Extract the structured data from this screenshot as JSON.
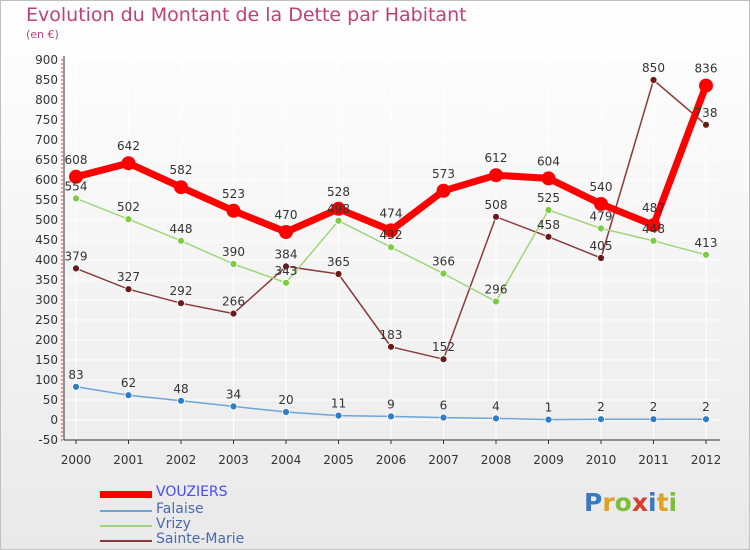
{
  "header": {
    "title": "Evolution du Montant de la Dette par Habitant",
    "subtitle": "(en €)"
  },
  "logo": {
    "text": "Proxiti",
    "letter_colors": [
      "#3a78c4",
      "#e0a020",
      "#7bbf3a",
      "#d93b2e",
      "#3a78c4",
      "#e0a020",
      "#7bbf3a"
    ]
  },
  "colors": {
    "title": "#c0407a",
    "axis": "#333333",
    "grid": "#ffffff",
    "tick_red": "#d93b2e"
  },
  "chart_data": {
    "type": "line",
    "x": [
      "2000",
      "2001",
      "2002",
      "2003",
      "2004",
      "2005",
      "2006",
      "2007",
      "2008",
      "2009",
      "2010",
      "2011",
      "2012"
    ],
    "ylim": [
      -50,
      900
    ],
    "yticks": [
      -50,
      0,
      50,
      100,
      150,
      200,
      250,
      300,
      350,
      400,
      450,
      500,
      550,
      600,
      650,
      700,
      750,
      800,
      850,
      900
    ],
    "title": "Evolution du Montant de la Dette par Habitant",
    "ylabel": "(en €)",
    "legend_position": "bottom-left",
    "series": [
      {
        "name": "VOUZIERS",
        "color": "#ff0000",
        "marker_color": "#ff0000",
        "width": 7,
        "label_color": "#333333",
        "values": [
          608,
          642,
          582,
          523,
          470,
          528,
          474,
          573,
          612,
          604,
          540,
          487,
          836
        ]
      },
      {
        "name": "Falaise",
        "color": "#6fa4d8",
        "marker_color": "#2f7dc8",
        "width": 1.5,
        "label_color": "#333333",
        "values": [
          83,
          62,
          48,
          34,
          20,
          11,
          9,
          6,
          4,
          1,
          2,
          2,
          2
        ]
      },
      {
        "name": "Vrizy",
        "color": "#9fd67a",
        "marker_color": "#7fcc44",
        "width": 1.5,
        "label_color": "#333333",
        "values": [
          554,
          502,
          448,
          390,
          343,
          498,
          432,
          366,
          296,
          525,
          479,
          448,
          413
        ]
      },
      {
        "name": "Sainte-Marie",
        "color": "#8a3b3b",
        "marker_color": "#6b1a1a",
        "width": 1.5,
        "label_color": "#333333",
        "values": [
          379,
          327,
          292,
          266,
          384,
          365,
          183,
          152,
          508,
          458,
          405,
          850,
          738
        ]
      }
    ]
  }
}
